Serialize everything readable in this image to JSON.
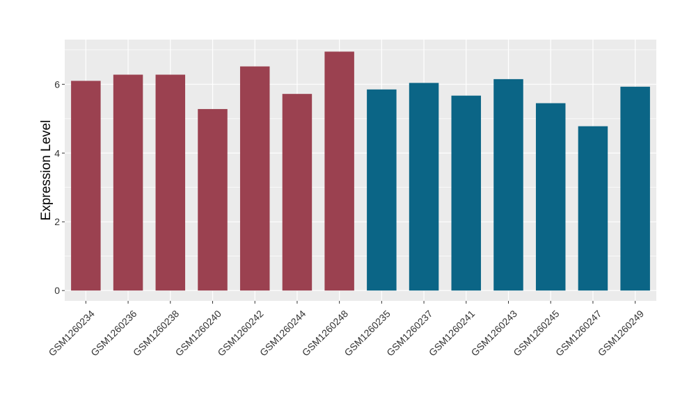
{
  "chart_data": {
    "type": "bar",
    "title": "",
    "xlabel": "",
    "ylabel": "Expression Level",
    "ylim": [
      -0.3,
      7.3
    ],
    "yticks": [
      0,
      2,
      4,
      6
    ],
    "grid": true,
    "legend": "none",
    "categories": [
      "GSM1260234",
      "GSM1260236",
      "GSM1260238",
      "GSM1260240",
      "GSM1260242",
      "GSM1260244",
      "GSM1260248",
      "GSM1260235",
      "GSM1260237",
      "GSM1260241",
      "GSM1260243",
      "GSM1260245",
      "GSM1260247",
      "GSM1260249"
    ],
    "values": [
      6.1,
      6.28,
      6.28,
      5.28,
      6.52,
      5.72,
      6.95,
      5.85,
      6.04,
      5.67,
      6.15,
      5.45,
      4.78,
      5.93
    ],
    "group_colors": [
      "#9b4150",
      "#9b4150",
      "#9b4150",
      "#9b4150",
      "#9b4150",
      "#9b4150",
      "#9b4150",
      "#0b6586",
      "#0b6586",
      "#0b6586",
      "#0b6586",
      "#0b6586",
      "#0b6586",
      "#0b6586"
    ],
    "panel_background": "#ebebeb",
    "grid_color": "#ffffff"
  }
}
